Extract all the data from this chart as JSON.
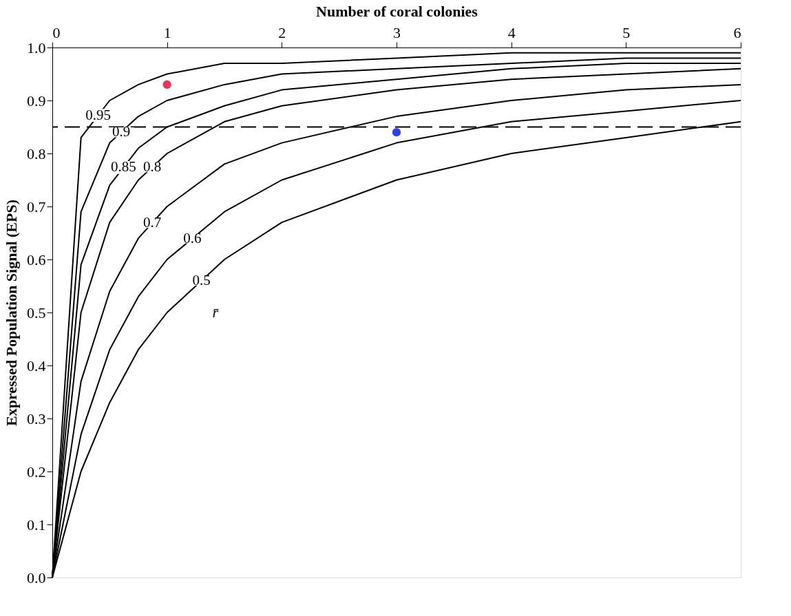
{
  "chart_data": {
    "type": "line",
    "xlabel": "Number of coral colonies",
    "ylabel": "Expressed Population Signal (EPS)",
    "x": [
      0,
      0.25,
      0.5,
      0.75,
      1,
      1.5,
      2,
      3,
      4,
      5,
      6
    ],
    "xlim": [
      0,
      6
    ],
    "xticks": [
      0,
      1,
      2,
      3,
      4,
      5,
      6
    ],
    "ylim": [
      0,
      1
    ],
    "yticks": [
      {
        "value": 0,
        "label": "0.0"
      },
      0.1,
      0.2,
      0.3,
      0.4,
      0.5,
      0.6,
      0.7,
      0.8,
      0.9,
      {
        "value": 1,
        "label": "1.0"
      }
    ],
    "grid": false,
    "series": [
      {
        "name": "0.95",
        "color": "#000000",
        "values": [
          0,
          0.83,
          0.9,
          0.93,
          0.95,
          0.97,
          0.97,
          0.98,
          0.99,
          0.99,
          0.99
        ]
      },
      {
        "name": "0.9",
        "color": "#000000",
        "values": [
          0,
          0.69,
          0.82,
          0.87,
          0.9,
          0.93,
          0.95,
          0.96,
          0.97,
          0.98,
          0.98
        ]
      },
      {
        "name": "0.85",
        "color": "#000000",
        "values": [
          0,
          0.59,
          0.74,
          0.81,
          0.85,
          0.89,
          0.92,
          0.94,
          0.96,
          0.97,
          0.97
        ]
      },
      {
        "name": "0.8",
        "color": "#000000",
        "values": [
          0,
          0.5,
          0.67,
          0.75,
          0.8,
          0.86,
          0.89,
          0.92,
          0.94,
          0.95,
          0.96
        ]
      },
      {
        "name": "0.7",
        "color": "#000000",
        "values": [
          0,
          0.37,
          0.54,
          0.64,
          0.7,
          0.78,
          0.82,
          0.87,
          0.9,
          0.92,
          0.93
        ]
      },
      {
        "name": "0.6",
        "color": "#000000",
        "values": [
          0,
          0.27,
          0.43,
          0.53,
          0.6,
          0.69,
          0.75,
          0.82,
          0.86,
          0.88,
          0.9
        ]
      },
      {
        "name": "0.5",
        "color": "#000000",
        "values": [
          0,
          0.2,
          0.33,
          0.43,
          0.5,
          0.6,
          0.67,
          0.75,
          0.8,
          0.83,
          0.86
        ]
      },
      {
        "type": "scatter",
        "marker": "circle",
        "color": "#f0325a",
        "x": [
          1
        ],
        "values": [
          0.93
        ]
      },
      {
        "type": "scatter",
        "marker": "circle",
        "color": "#3040f0",
        "x": [
          3
        ],
        "values": [
          0.84
        ]
      }
    ],
    "ref_lines": [
      {
        "axis": "y",
        "value": 0.85,
        "color": "#000000",
        "line_style": "dashed"
      }
    ],
    "annotations": [
      "r̄"
    ]
  }
}
